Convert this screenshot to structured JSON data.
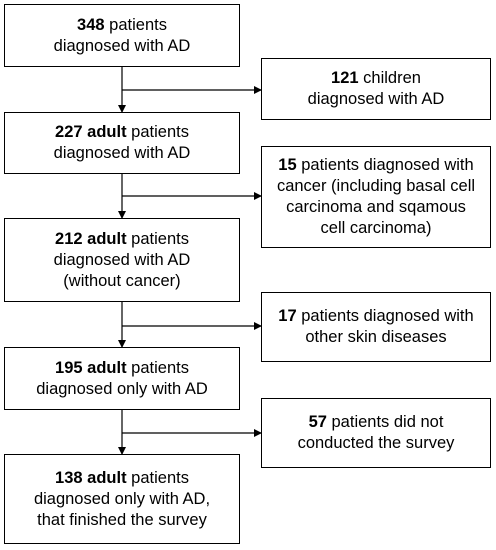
{
  "main_boxes": [
    {
      "lines": [
        [
          {
            "t": "348",
            "b": true
          },
          {
            "t": " patients",
            "b": false
          }
        ],
        [
          {
            "t": "diagnosed with AD",
            "b": false
          }
        ]
      ]
    },
    {
      "lines": [
        [
          {
            "t": "227 adult",
            "b": true
          },
          {
            "t": " patients",
            "b": false
          }
        ],
        [
          {
            "t": "diagnosed with AD",
            "b": false
          }
        ]
      ]
    },
    {
      "lines": [
        [
          {
            "t": "212 adult",
            "b": true
          },
          {
            "t": " patients",
            "b": false
          }
        ],
        [
          {
            "t": "diagnosed with AD",
            "b": false
          }
        ],
        [
          {
            "t": "(without cancer)",
            "b": false
          }
        ]
      ]
    },
    {
      "lines": [
        [
          {
            "t": "195 adult",
            "b": true
          },
          {
            "t": " patients",
            "b": false
          }
        ],
        [
          {
            "t": "diagnosed only with AD",
            "b": false
          }
        ]
      ]
    },
    {
      "lines": [
        [
          {
            "t": "138 adult",
            "b": true
          },
          {
            "t": " patients",
            "b": false
          }
        ],
        [
          {
            "t": "diagnosed only with AD,",
            "b": false
          }
        ],
        [
          {
            "t": "that finished the survey",
            "b": false
          }
        ]
      ]
    }
  ],
  "exclusion_boxes": [
    {
      "lines": [
        [
          {
            "t": "121",
            "b": true
          },
          {
            "t": " children",
            "b": false
          }
        ],
        [
          {
            "t": "diagnosed with AD",
            "b": false
          }
        ]
      ]
    },
    {
      "lines": [
        [
          {
            "t": "15",
            "b": true
          },
          {
            "t": " patients diagnosed with",
            "b": false
          }
        ],
        [
          {
            "t": "cancer (including basal cell",
            "b": false
          }
        ],
        [
          {
            "t": "carcinoma and sqamous",
            "b": false
          }
        ],
        [
          {
            "t": "cell carcinoma)",
            "b": false
          }
        ]
      ]
    },
    {
      "lines": [
        [
          {
            "t": "17",
            "b": true
          },
          {
            "t": " patients diagnosed with",
            "b": false
          }
        ],
        [
          {
            "t": "other skin diseases",
            "b": false
          }
        ]
      ]
    },
    {
      "lines": [
        [
          {
            "t": "57",
            "b": true
          },
          {
            "t": " patients did not",
            "b": false
          }
        ],
        [
          {
            "t": "conducted the survey",
            "b": false
          }
        ]
      ]
    }
  ]
}
